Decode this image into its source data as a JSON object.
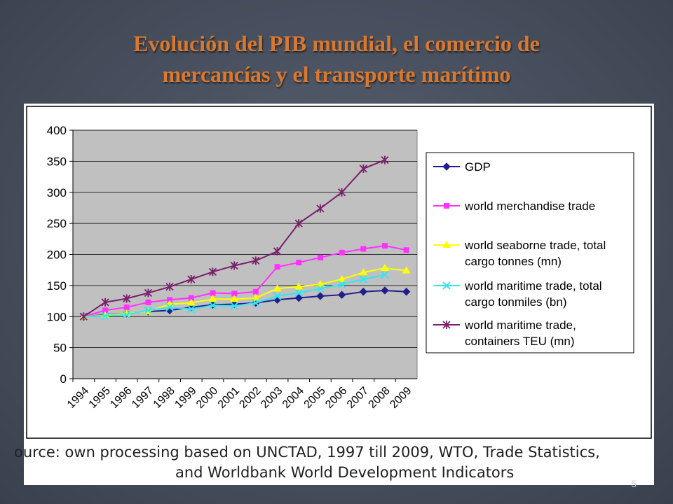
{
  "slide": {
    "title_line1": "Evolución del PIB mundial, el comercio de",
    "title_line2": "mercancías y el transporte marítimo",
    "source_line1": "ource: own processing based on UNCTAD, 1997 till 2009, WTO, Trade Statistics,",
    "source_line2": "and Worldbank World Development Indicators",
    "page_number": "5"
  },
  "chart_data": {
    "type": "line",
    "x": [
      "1994",
      "1995",
      "1996",
      "1997",
      "1998",
      "1999",
      "2000",
      "2001",
      "2002",
      "2003",
      "2004",
      "2005",
      "2006",
      "2007",
      "2008",
      "2009"
    ],
    "ylim": [
      0,
      400
    ],
    "yticks": [
      0,
      50,
      100,
      150,
      200,
      250,
      300,
      350,
      400
    ],
    "plot_background": "#c0c0c0",
    "grid": true,
    "legend_position": "right",
    "series": [
      {
        "name": "GDP",
        "color": "#1f1f8c",
        "marker": "diamond",
        "values": [
          100,
          103,
          105,
          108,
          110,
          115,
          119,
          120,
          122,
          127,
          130,
          133,
          135,
          140,
          142,
          140
        ]
      },
      {
        "name": "world merchandise trade",
        "color": "#ff33ff",
        "marker": "square",
        "values": [
          100,
          110,
          115,
          123,
          127,
          130,
          138,
          137,
          140,
          180,
          187,
          195,
          203,
          209,
          214,
          207
        ]
      },
      {
        "name": "world seaborne trade, total cargo tonnes (mn)",
        "color": "#ffff00",
        "marker": "triangle",
        "values": [
          100,
          102,
          105,
          108,
          120,
          122,
          128,
          128,
          130,
          145,
          148,
          152,
          160,
          171,
          178,
          174
        ]
      },
      {
        "name": "world maritime trade, total cargo tonmiles (bn)",
        "color": "#33e6f2",
        "marker": "x",
        "values": [
          100,
          101,
          103,
          110,
          115,
          112,
          118,
          117,
          122,
          133,
          138,
          145,
          152,
          160,
          167,
          null
        ]
      },
      {
        "name": "world maritime trade, containers TEU (mn)",
        "color": "#7a1f6e",
        "marker": "star",
        "values": [
          100,
          123,
          129,
          138,
          148,
          160,
          172,
          182,
          190,
          205,
          250,
          274,
          300,
          338,
          352,
          null
        ]
      }
    ],
    "legend_labels": [
      [
        "GDP"
      ],
      [
        "world merchandise trade"
      ],
      [
        "world seaborne trade, total",
        "cargo tonnes (mn)"
      ],
      [
        "world maritime trade, total",
        "cargo tonmiles (bn)"
      ],
      [
        "world maritime trade,",
        "containers TEU (mn)"
      ]
    ]
  }
}
